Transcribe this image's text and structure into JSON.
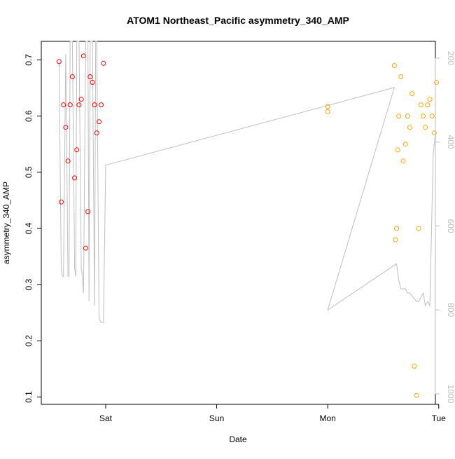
{
  "chart_data": {
    "type": "scatter",
    "title": "ATOM1 Northeast_Pacific asymmetry_340_AMP",
    "xlabel": "Date",
    "ylabel": "asymmetry_340_AMP",
    "x_unit": "days since Fri 00:00",
    "xlim": [
      0.42,
      3.97
    ],
    "ylim": [
      0.087,
      0.733
    ],
    "x_ticks": [
      {
        "value": 1,
        "label": "Sat"
      },
      {
        "value": 2,
        "label": "Sun"
      },
      {
        "value": 3,
        "label": "Mon"
      },
      {
        "value": 4,
        "label": "Tue"
      }
    ],
    "y_ticks": [
      {
        "value": 0.1,
        "label": "0.1"
      },
      {
        "value": 0.2,
        "label": "0.2"
      },
      {
        "value": 0.3,
        "label": "0.3"
      },
      {
        "value": 0.4,
        "label": "0.4"
      },
      {
        "value": 0.5,
        "label": "0.5"
      },
      {
        "value": 0.6,
        "label": "0.6"
      },
      {
        "value": 0.7,
        "label": "0.7"
      }
    ],
    "secondary_y": {
      "label": "",
      "ylim_reversed": [
        1025,
        160
      ],
      "ticks": [
        {
          "value": 200,
          "label": "200"
        },
        {
          "value": 400,
          "label": "400"
        },
        {
          "value": 600,
          "label": "600"
        },
        {
          "value": 800,
          "label": "800"
        },
        {
          "value": 1000,
          "label": "1000"
        }
      ],
      "color": "#bebebe"
    },
    "grid": false,
    "series": [
      {
        "color": "#ff0000",
        "x_range": [
          0.58,
          0.98
        ],
        "y_range": [
          0.365,
          0.71
        ],
        "count": 330,
        "x": [
          0.58,
          0.6,
          0.62,
          0.64,
          0.66,
          0.68,
          0.7,
          0.72,
          0.74,
          0.76,
          0.78,
          0.8,
          0.82,
          0.84,
          0.86,
          0.88,
          0.9,
          0.92,
          0.94,
          0.96,
          0.98
        ],
        "y": [
          0.697,
          0.447,
          0.62,
          0.58,
          0.52,
          0.62,
          0.67,
          0.49,
          0.54,
          0.62,
          0.63,
          0.707,
          0.365,
          0.43,
          0.67,
          0.66,
          0.62,
          0.57,
          0.59,
          0.62,
          0.694
        ]
      },
      {
        "color": "#ffa500",
        "x_range": [
          3.0,
          3.98
        ],
        "y_range": [
          0.103,
          0.69
        ],
        "count": 250,
        "x": [
          3.0,
          3.0,
          3.6,
          3.61,
          3.62,
          3.63,
          3.64,
          3.66,
          3.68,
          3.7,
          3.72,
          3.74,
          3.76,
          3.78,
          3.8,
          3.82,
          3.84,
          3.86,
          3.88,
          3.9,
          3.92,
          3.94,
          3.96,
          3.98
        ],
        "y": [
          0.617,
          0.608,
          0.69,
          0.38,
          0.4,
          0.54,
          0.6,
          0.67,
          0.52,
          0.55,
          0.6,
          0.58,
          0.64,
          0.155,
          0.103,
          0.4,
          0.62,
          0.6,
          0.58,
          0.62,
          0.63,
          0.6,
          0.57,
          0.66
        ]
      }
    ],
    "depth_line": {
      "color": "#bebebe",
      "t": [
        0.58,
        0.6,
        0.61,
        0.62,
        0.64,
        0.66,
        0.67,
        0.68,
        0.7,
        0.72,
        0.73,
        0.74,
        0.76,
        0.78,
        0.79,
        0.8,
        0.82,
        0.84,
        0.85,
        0.86,
        0.88,
        0.9,
        0.91,
        0.92,
        0.94,
        0.96,
        0.98,
        1.0,
        3.6,
        3.0,
        3.62,
        3.64,
        3.66,
        3.7,
        3.72,
        3.74,
        3.8,
        3.82,
        3.86,
        3.88,
        3.9,
        3.92,
        3.95,
        3.97
      ],
      "d": [
        210,
        700,
        720,
        720,
        190,
        720,
        720,
        160,
        160,
        700,
        720,
        160,
        160,
        700,
        720,
        760,
        160,
        160,
        780,
        160,
        160,
        790,
        160,
        160,
        820,
        830,
        830,
        455,
        270,
        800,
        690,
        730,
        750,
        750,
        760,
        760,
        780,
        780,
        760,
        790,
        780,
        790,
        430,
        380
      ]
    }
  }
}
